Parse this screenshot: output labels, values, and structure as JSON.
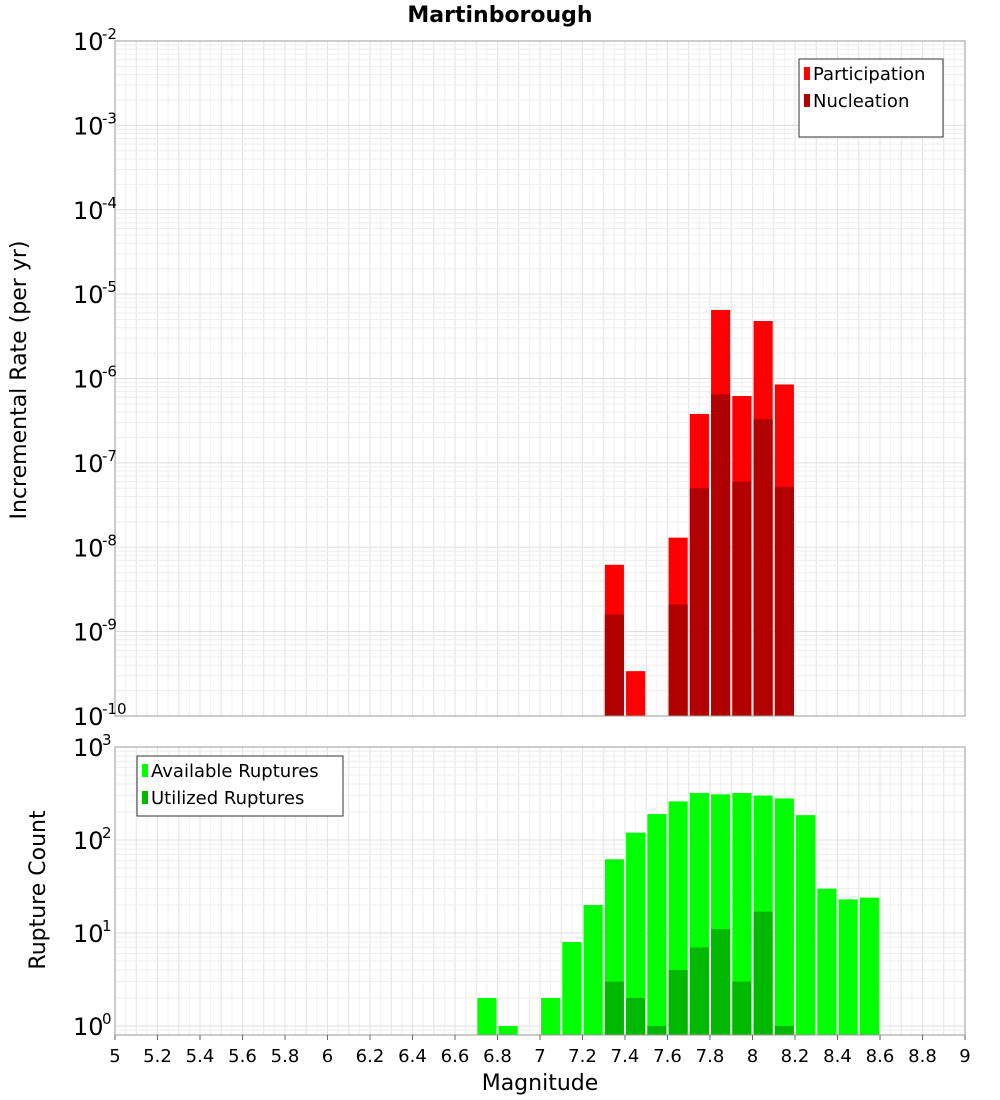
{
  "chart_data": [
    {
      "type": "bar",
      "title": "Martinborough",
      "xlabel": "",
      "ylabel": "Incremental Rate (per yr)",
      "yscale": "log",
      "ylim": [
        1e-10,
        0.01
      ],
      "xlim": [
        5,
        9
      ],
      "grid": true,
      "legend_position": "top-right",
      "y_ticks": [
        {
          "base": "10",
          "exp": "-10"
        },
        {
          "base": "10",
          "exp": "-9"
        },
        {
          "base": "10",
          "exp": "-8"
        },
        {
          "base": "10",
          "exp": "-7"
        },
        {
          "base": "10",
          "exp": "-6"
        },
        {
          "base": "10",
          "exp": "-5"
        },
        {
          "base": "10",
          "exp": "-4"
        },
        {
          "base": "10",
          "exp": "-3"
        },
        {
          "base": "10",
          "exp": "-2"
        }
      ],
      "x": [
        7.35,
        7.45,
        7.65,
        7.75,
        7.85,
        7.95,
        8.05,
        8.15
      ],
      "series": [
        {
          "name": "Participation",
          "color": "#ff0000",
          "values": [
            6.2e-09,
            3.4e-10,
            1.3e-08,
            3.8e-07,
            6.5e-06,
            6.2e-07,
            4.8e-06,
            8.5e-07
          ]
        },
        {
          "name": "Nucleation",
          "color": "#b20000",
          "values": [
            1.6e-09,
            0,
            2.1e-09,
            5e-08,
            6.5e-07,
            6e-08,
            3.3e-07,
            5.2e-08
          ]
        }
      ]
    },
    {
      "type": "bar",
      "xlabel": "Magnitude",
      "ylabel": "Rupture Count",
      "yscale": "log",
      "ylim": [
        0.8,
        1000
      ],
      "xlim": [
        5,
        9
      ],
      "grid": true,
      "legend_position": "top-left",
      "y_ticks": [
        {
          "base": "10",
          "exp": "0"
        },
        {
          "base": "10",
          "exp": "1"
        },
        {
          "base": "10",
          "exp": "2"
        },
        {
          "base": "10",
          "exp": "3"
        }
      ],
      "x_ticks": [
        "5",
        "5.2",
        "5.4",
        "5.6",
        "5.8",
        "6",
        "6.2",
        "6.4",
        "6.6",
        "6.8",
        "7",
        "7.2",
        "7.4",
        "7.6",
        "7.8",
        "8",
        "8.2",
        "8.4",
        "8.6",
        "8.8",
        "9"
      ],
      "x": [
        6.75,
        6.85,
        7.05,
        7.15,
        7.25,
        7.35,
        7.45,
        7.55,
        7.65,
        7.75,
        7.85,
        7.95,
        8.05,
        8.15,
        8.25,
        8.35,
        8.45,
        8.55
      ],
      "series": [
        {
          "name": "Available Ruptures",
          "color": "#00ff00",
          "values": [
            2,
            1,
            2,
            8,
            20,
            62,
            120,
            190,
            260,
            320,
            310,
            320,
            300,
            280,
            185,
            30,
            23,
            24
          ]
        },
        {
          "name": "Utilized Ruptures",
          "color": "#00b800",
          "values": [
            0,
            0,
            0,
            0,
            0,
            3,
            2,
            1,
            4,
            7,
            11,
            3,
            17,
            1,
            0,
            0,
            0,
            0
          ]
        }
      ]
    }
  ]
}
